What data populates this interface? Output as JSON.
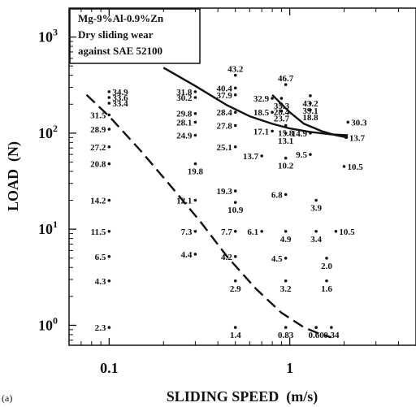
{
  "chart_data": {
    "type": "scatter",
    "panel_label": "(a)",
    "legend": {
      "lines": [
        "Mg-9%Al-0.9%Zn",
        "Dry sliding wear",
        "against SAE 52100"
      ],
      "placement": "top-left"
    },
    "xlabel": "SLIDING SPEED  (m/s)",
    "ylabel": "LOAD  (N)",
    "x_scale": "log",
    "y_scale": "log",
    "xlim": [
      0.06,
      5.0
    ],
    "ylim": [
      0.62,
      2000
    ],
    "x_ticks": [
      {
        "value": 0.1,
        "label": "0.1"
      },
      {
        "value": 1,
        "label": "1"
      }
    ],
    "y_ticks": [
      {
        "value": 1,
        "base": "10",
        "exp": "0"
      },
      {
        "value": 10,
        "base": "10",
        "exp": "1"
      },
      {
        "value": 100,
        "base": "10",
        "exp": "2"
      },
      {
        "value": 1000,
        "base": "10",
        "exp": "3"
      }
    ],
    "points": [
      {
        "x": 0.1,
        "y": 270,
        "label": "34.9",
        "side": "right"
      },
      {
        "x": 0.1,
        "y": 235,
        "label": "33.6",
        "side": "right"
      },
      {
        "x": 0.1,
        "y": 205,
        "label": "33.4",
        "side": "right"
      },
      {
        "x": 0.1,
        "y": 155,
        "label": "31.5",
        "side": "left"
      },
      {
        "x": 0.1,
        "y": 110,
        "label": "28.9",
        "side": "left"
      },
      {
        "x": 0.1,
        "y": 72,
        "label": "27.2",
        "side": "left"
      },
      {
        "x": 0.1,
        "y": 48,
        "label": "20.8",
        "side": "left"
      },
      {
        "x": 0.1,
        "y": 20,
        "label": "14.2",
        "side": "left"
      },
      {
        "x": 0.1,
        "y": 9.5,
        "label": "11.5",
        "side": "left"
      },
      {
        "x": 0.1,
        "y": 5.2,
        "label": "6.5",
        "side": "left"
      },
      {
        "x": 0.1,
        "y": 2.9,
        "label": "4.3",
        "side": "left"
      },
      {
        "x": 0.1,
        "y": 0.95,
        "label": "2.3",
        "side": "left"
      },
      {
        "x": 0.3,
        "y": 270,
        "label": "31.8",
        "side": "left"
      },
      {
        "x": 0.3,
        "y": 235,
        "label": "30.2",
        "side": "left"
      },
      {
        "x": 0.3,
        "y": 160,
        "label": "29.8",
        "side": "left"
      },
      {
        "x": 0.3,
        "y": 130,
        "label": "28.1",
        "side": "left"
      },
      {
        "x": 0.3,
        "y": 95,
        "label": "24.9",
        "side": "left"
      },
      {
        "x": 0.3,
        "y": 48,
        "label": "19.8",
        "side": "below"
      },
      {
        "x": 0.3,
        "y": 20,
        "label": "12.1",
        "side": "left"
      },
      {
        "x": 0.3,
        "y": 9.5,
        "label": "7.3",
        "side": "left"
      },
      {
        "x": 0.3,
        "y": 5.5,
        "label": "4.4",
        "side": "left"
      },
      {
        "x": 0.5,
        "y": 400,
        "label": "43.2",
        "side": "above"
      },
      {
        "x": 0.5,
        "y": 295,
        "label": "40.4",
        "side": "left"
      },
      {
        "x": 0.5,
        "y": 250,
        "label": "37.9",
        "side": "left"
      },
      {
        "x": 0.5,
        "y": 165,
        "label": "28.4",
        "side": "left"
      },
      {
        "x": 0.5,
        "y": 120,
        "label": "27.8",
        "side": "left"
      },
      {
        "x": 0.5,
        "y": 72,
        "label": "25.1",
        "side": "left"
      },
      {
        "x": 0.5,
        "y": 25,
        "label": "19.3",
        "side": "left"
      },
      {
        "x": 0.5,
        "y": 19,
        "label": "10.9",
        "side": "below"
      },
      {
        "x": 0.5,
        "y": 9.5,
        "label": "7.7",
        "side": "left"
      },
      {
        "x": 0.5,
        "y": 5.2,
        "label": "4.2",
        "side": "left"
      },
      {
        "x": 0.5,
        "y": 2.9,
        "label": "2.9",
        "side": "below"
      },
      {
        "x": 0.5,
        "y": 0.95,
        "label": "1.4",
        "side": "below"
      },
      {
        "x": 0.8,
        "y": 230,
        "label": "32.9",
        "side": "left"
      },
      {
        "x": 0.8,
        "y": 165,
        "label": "18.5",
        "side": "left"
      },
      {
        "x": 0.8,
        "y": 105,
        "label": "17.1",
        "side": "left"
      },
      {
        "x": 0.7,
        "y": 58,
        "label": "13.7",
        "side": "left"
      },
      {
        "x": 0.7,
        "y": 9.5,
        "label": "6.1",
        "side": "left"
      },
      {
        "x": 0.95,
        "y": 320,
        "label": "46.7",
        "side": "above"
      },
      {
        "x": 0.9,
        "y": 230,
        "label": "35.3",
        "side": "below"
      },
      {
        "x": 0.9,
        "y": 200,
        "label": "28.4",
        "side": "below"
      },
      {
        "x": 0.9,
        "y": 170,
        "label": "23.7",
        "side": "below"
      },
      {
        "x": 0.95,
        "y": 120,
        "label": "15.8",
        "side": "below"
      },
      {
        "x": 0.95,
        "y": 100,
        "label": "13.1",
        "side": "below"
      },
      {
        "x": 0.95,
        "y": 55,
        "label": "10.2",
        "side": "below"
      },
      {
        "x": 0.95,
        "y": 23,
        "label": "6.8",
        "side": "left"
      },
      {
        "x": 0.95,
        "y": 9.5,
        "label": "4.9",
        "side": "below"
      },
      {
        "x": 0.95,
        "y": 5.0,
        "label": "4.5",
        "side": "left"
      },
      {
        "x": 0.95,
        "y": 2.9,
        "label": "3.2",
        "side": "below"
      },
      {
        "x": 0.95,
        "y": 0.95,
        "label": "0.83",
        "side": "below"
      },
      {
        "x": 1.3,
        "y": 245,
        "label": "43.2",
        "side": "below"
      },
      {
        "x": 1.3,
        "y": 205,
        "label": "39.1",
        "side": "below"
      },
      {
        "x": 1.3,
        "y": 175,
        "label": "18.8",
        "side": "below"
      },
      {
        "x": 1.3,
        "y": 100,
        "label": "14.9",
        "side": "left"
      },
      {
        "x": 1.3,
        "y": 60,
        "label": "9.5",
        "side": "left"
      },
      {
        "x": 1.4,
        "y": 20,
        "label": "3.9",
        "side": "below"
      },
      {
        "x": 1.4,
        "y": 9.5,
        "label": "3.4",
        "side": "below"
      },
      {
        "x": 1.6,
        "y": 5.0,
        "label": "2.0",
        "side": "below"
      },
      {
        "x": 1.6,
        "y": 2.9,
        "label": "1.6",
        "side": "below"
      },
      {
        "x": 1.4,
        "y": 0.95,
        "label": "0.60",
        "side": "below"
      },
      {
        "x": 1.7,
        "y": 0.95,
        "label": "0.34",
        "side": "below"
      },
      {
        "x": 2.1,
        "y": 130,
        "label": "30.3",
        "side": "right"
      },
      {
        "x": 2.05,
        "y": 90,
        "label": "13.7",
        "side": "right"
      },
      {
        "x": 2.0,
        "y": 45,
        "label": "10.5",
        "side": "right"
      },
      {
        "x": 1.8,
        "y": 9.5,
        "label": "10.5",
        "side": "right"
      }
    ],
    "series": [
      {
        "style": "dashed",
        "x": [
          0.075,
          0.1,
          0.15,
          0.22,
          0.32,
          0.45,
          0.65,
          0.9,
          1.2,
          1.5,
          1.7
        ],
        "y": [
          250,
          150,
          65,
          28,
          12,
          5.2,
          2.4,
          1.35,
          0.95,
          0.8,
          0.75
        ]
      },
      {
        "style": "solid",
        "x": [
          0.2,
          0.3,
          0.45,
          0.6,
          0.8,
          1.0,
          1.3,
          1.7,
          2.1
        ],
        "y": [
          480,
          310,
          195,
          150,
          125,
          112,
          103,
          97,
          95
        ]
      },
      {
        "style": "solid",
        "x": [
          0.8,
          1.0,
          1.2,
          1.5,
          1.8,
          2.1
        ],
        "y": [
          250,
          165,
          125,
          105,
          95,
          90
        ]
      }
    ],
    "grid": false
  }
}
